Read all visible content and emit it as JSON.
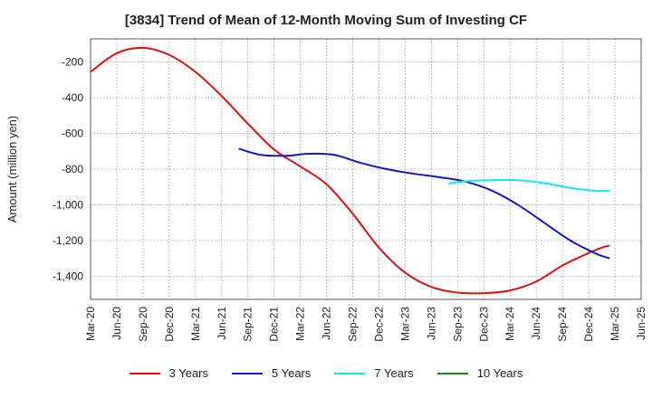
{
  "chart_data": {
    "type": "line",
    "title": "[3834]  Trend of Mean of 12-Month Moving Sum of Investing CF",
    "xlabel": "",
    "ylabel": "Amount (million yen)",
    "ylim": [
      -1530,
      -70
    ],
    "yticks": [
      -200,
      -400,
      -600,
      -800,
      -1000,
      -1200,
      -1400
    ],
    "ytick_labels": [
      "-200",
      "-400",
      "-600",
      "-800",
      "-1,000",
      "-1,200",
      "-1,400"
    ],
    "xticks": [
      "Mar-20",
      "Jun-20",
      "Sep-20",
      "Dec-20",
      "Mar-21",
      "Jun-21",
      "Sep-21",
      "Dec-21",
      "Mar-22",
      "Jun-22",
      "Sep-22",
      "Dec-22",
      "Mar-23",
      "Jun-23",
      "Sep-23",
      "Dec-23",
      "Mar-24",
      "Jun-24",
      "Sep-24",
      "Dec-24",
      "Mar-25",
      "Jun-25"
    ],
    "grid": true,
    "legend_position": "bottom",
    "series": [
      {
        "name": "3 Years",
        "color": "#dd1111",
        "points": [
          [
            0,
            -255
          ],
          [
            1,
            -150
          ],
          [
            2,
            -120
          ],
          [
            3,
            -160
          ],
          [
            4,
            -255
          ],
          [
            5,
            -390
          ],
          [
            6,
            -545
          ],
          [
            7,
            -690
          ],
          [
            8,
            -785
          ],
          [
            9,
            -885
          ],
          [
            10,
            -1050
          ],
          [
            11,
            -1240
          ],
          [
            12,
            -1380
          ],
          [
            13,
            -1460
          ],
          [
            14,
            -1492
          ],
          [
            15,
            -1495
          ],
          [
            16,
            -1480
          ],
          [
            17,
            -1430
          ],
          [
            18,
            -1340
          ],
          [
            19,
            -1270
          ],
          [
            19.5,
            -1240
          ],
          [
            19.8,
            -1228
          ]
        ]
      },
      {
        "name": "5 Years",
        "color": "#0f1ac8",
        "points": [
          [
            5.65,
            -685
          ],
          [
            6.5,
            -720
          ],
          [
            7.5,
            -725
          ],
          [
            8.3,
            -714
          ],
          [
            9.3,
            -720
          ],
          [
            10.3,
            -765
          ],
          [
            11.3,
            -800
          ],
          [
            12.3,
            -825
          ],
          [
            13.3,
            -845
          ],
          [
            14.3,
            -870
          ],
          [
            15.3,
            -920
          ],
          [
            16.3,
            -1000
          ],
          [
            17.3,
            -1100
          ],
          [
            18.3,
            -1200
          ],
          [
            19.3,
            -1275
          ],
          [
            19.8,
            -1300
          ]
        ]
      },
      {
        "name": "7 Years",
        "color": "#11e8e8",
        "points": [
          [
            13.65,
            -880
          ],
          [
            14.5,
            -866
          ],
          [
            15.3,
            -862
          ],
          [
            16.3,
            -862
          ],
          [
            17.3,
            -878
          ],
          [
            18.3,
            -905
          ],
          [
            19.3,
            -922
          ],
          [
            19.8,
            -922
          ]
        ]
      },
      {
        "name": "10 Years",
        "color": "#1a8a1a",
        "points": []
      }
    ]
  }
}
